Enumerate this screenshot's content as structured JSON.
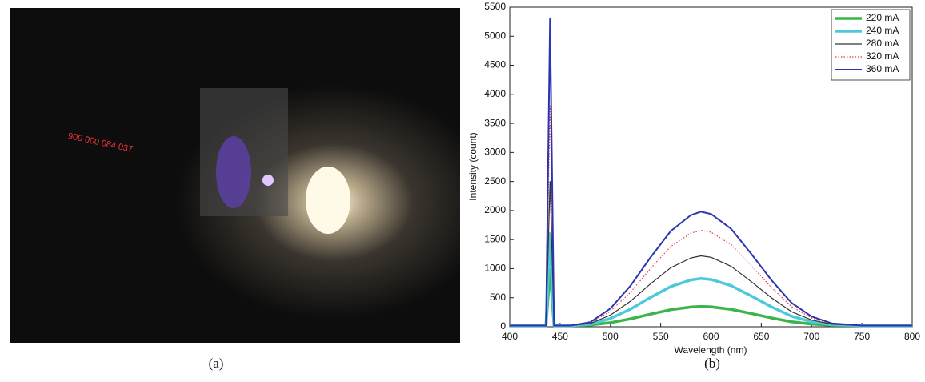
{
  "captions": [
    "(a)",
    "(b)"
  ],
  "chart_data": {
    "type": "line",
    "xlabel": "Wavelength (nm)",
    "ylabel": "Intensity (count)",
    "x": [
      400,
      430,
      436,
      440,
      444,
      460,
      480,
      500,
      520,
      540,
      560,
      580,
      590,
      600,
      620,
      640,
      660,
      680,
      700,
      720,
      750,
      800
    ],
    "series": [
      {
        "name": "220 mA",
        "color": "#3cb44b",
        "width": 3.5,
        "dotted": false,
        "values": [
          20,
          20,
          20,
          980,
          20,
          20,
          30,
          70,
          136,
          218,
          294,
          340,
          350,
          343,
          300,
          228,
          152,
          86,
          46,
          27,
          20,
          20
        ]
      },
      {
        "name": "240 mA",
        "color": "#4fc8dc",
        "width": 3.5,
        "dotted": false,
        "values": [
          20,
          20,
          20,
          1600,
          20,
          20,
          44,
          142,
          304,
          506,
          692,
          806,
          830,
          814,
          708,
          530,
          344,
          182,
          85,
          36,
          20,
          20
        ]
      },
      {
        "name": "280 mA",
        "color": "#333333",
        "width": 1.2,
        "dotted": false,
        "values": [
          20,
          20,
          20,
          2500,
          20,
          20,
          56,
          200,
          440,
          740,
          1016,
          1184,
          1220,
          1196,
          1040,
          776,
          500,
          260,
          116,
          44,
          20,
          20
        ]
      },
      {
        "name": "320 mA",
        "color": "#e8393a",
        "width": 1.2,
        "dotted": true,
        "values": [
          20,
          20,
          20,
          3800,
          20,
          20,
          69,
          266,
          594,
          1004,
          1381,
          1611,
          1660,
          1627,
          1414,
          1053,
          676,
          348,
          151,
          53,
          20,
          20
        ]
      },
      {
        "name": "360 mA",
        "color": "#2b35b0",
        "width": 2,
        "dotted": false,
        "values": [
          20,
          20,
          20,
          5300,
          20,
          20,
          79,
          314,
          706,
          1196,
          1647,
          1921,
          1980,
          1941,
          1686,
          1255,
          804,
          412,
          177,
          59,
          20,
          20
        ]
      }
    ],
    "xlim": [
      400,
      800
    ],
    "xticks": [
      400,
      450,
      500,
      550,
      600,
      650,
      700,
      750,
      800
    ],
    "ylim": [
      0,
      5500
    ],
    "yticks": [
      0,
      500,
      1000,
      1500,
      2000,
      2500,
      3000,
      3500,
      4000,
      4500,
      5000,
      5500
    ],
    "grid": false,
    "legend": "top-right"
  }
}
